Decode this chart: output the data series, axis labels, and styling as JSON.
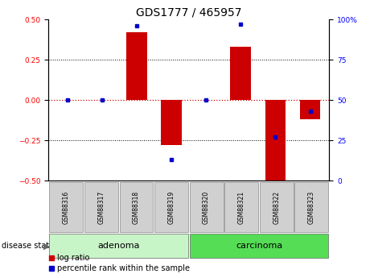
{
  "title": "GDS1777 / 465957",
  "samples": [
    "GSM88316",
    "GSM88317",
    "GSM88318",
    "GSM88319",
    "GSM88320",
    "GSM88321",
    "GSM88322",
    "GSM88323"
  ],
  "log_ratio": [
    0.0,
    0.0,
    0.42,
    -0.28,
    0.0,
    0.33,
    -0.52,
    -0.12
  ],
  "percentile_rank": [
    50,
    50,
    96,
    13,
    50,
    97,
    27,
    43
  ],
  "groups": [
    {
      "label": "adenoma",
      "samples": [
        0,
        1,
        2,
        3
      ],
      "color": "#c8f5c8"
    },
    {
      "label": "carcinoma",
      "samples": [
        4,
        5,
        6,
        7
      ],
      "color": "#55dd55"
    }
  ],
  "ylim_left": [
    -0.5,
    0.5
  ],
  "ylim_right": [
    0,
    100
  ],
  "yticks_left": [
    -0.5,
    -0.25,
    0.0,
    0.25,
    0.5
  ],
  "yticks_right": [
    0,
    25,
    50,
    75,
    100
  ],
  "bar_color": "#cc0000",
  "dot_color": "#0000cc",
  "hline_color": "#cc0000",
  "dotted_color": "#000000",
  "sample_box_color": "#d0d0d0",
  "title_fontsize": 10,
  "tick_fontsize": 6.5,
  "sample_fontsize": 5.5,
  "label_fontsize": 8,
  "legend_fontsize": 7
}
